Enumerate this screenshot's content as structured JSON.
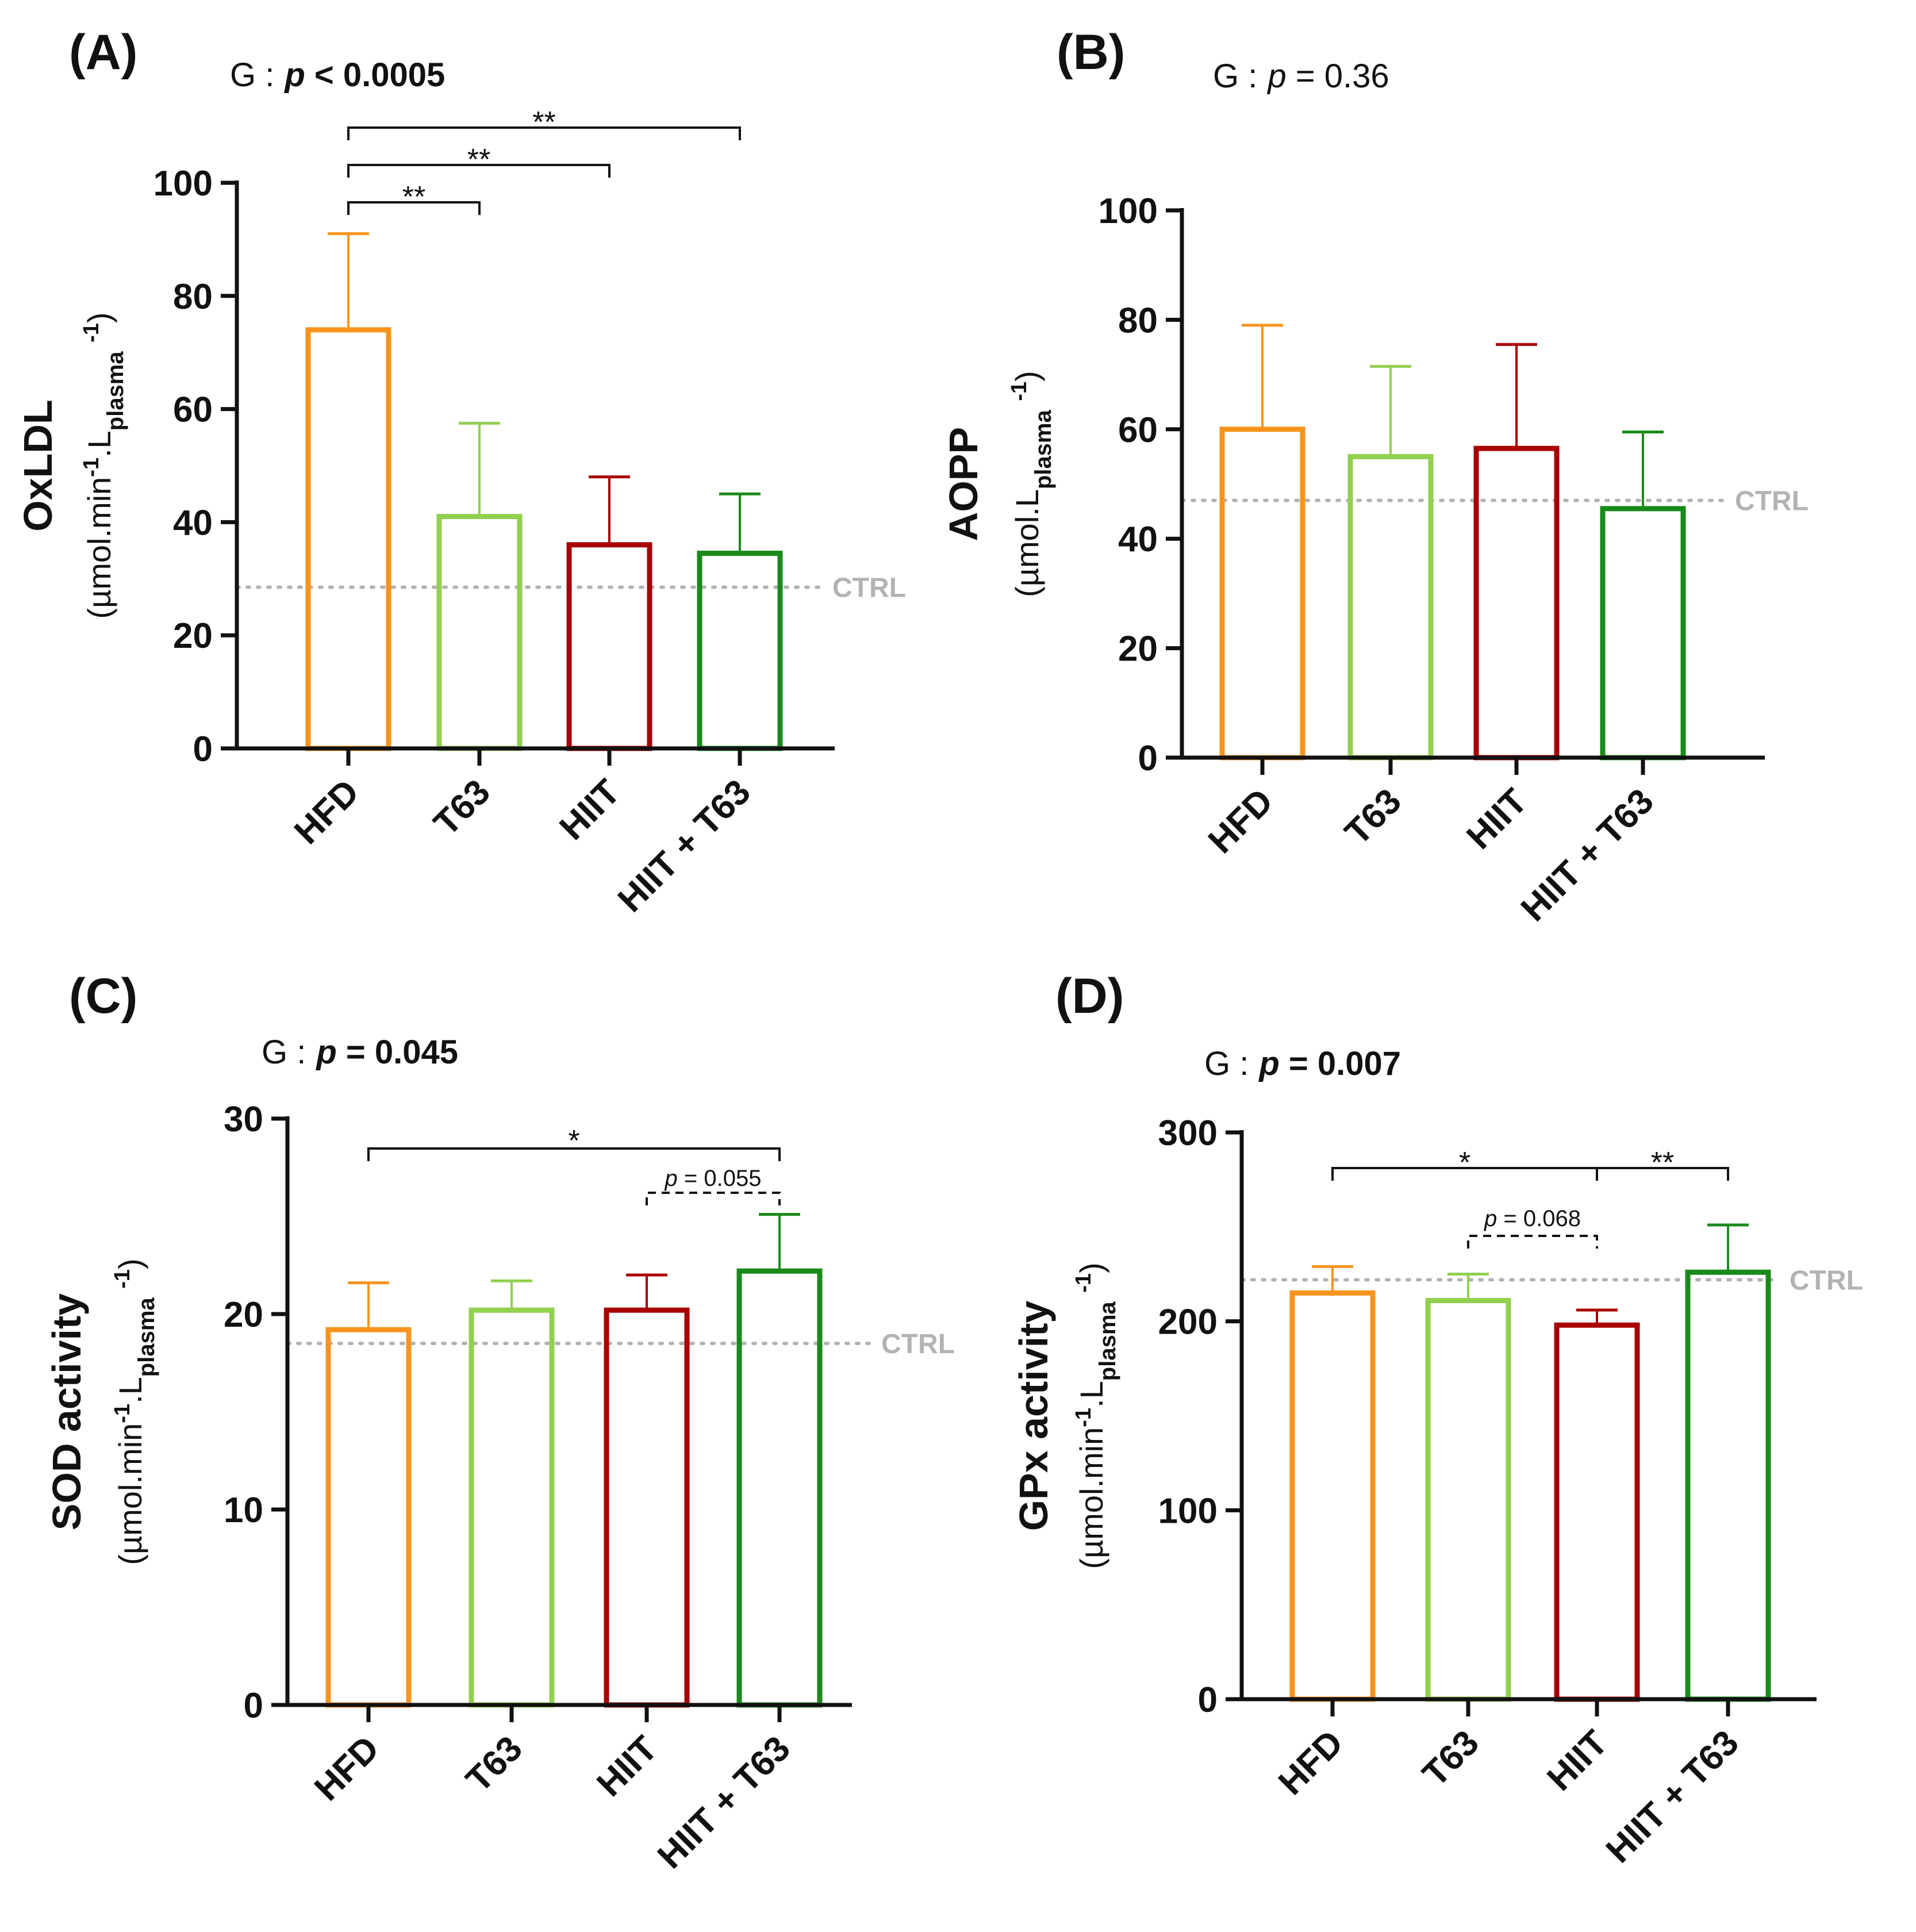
{
  "chart_data": [
    {
      "panel": "(A)",
      "type": "bar",
      "group_label": "G :",
      "group_stat": "p < 0.0005",
      "group_stat_bold": true,
      "ylabel": "OxLDL",
      "ylabel_unit": [
        "(µmol.min",
        "-1",
        ".L",
        "plasma",
        " ",
        "-1",
        ")"
      ],
      "ylim": [
        0,
        100
      ],
      "yticks": [
        0,
        20,
        40,
        60,
        80,
        100
      ],
      "categories": [
        "HFD",
        "T63",
        "HIIT",
        "HIIT + T63"
      ],
      "values": [
        74,
        41,
        36,
        34.5
      ],
      "errors_upper": [
        91,
        57.5,
        48,
        45
      ],
      "colors": [
        "#F7941D",
        "#92D050",
        "#A80000",
        "#1A8A1A"
      ],
      "control": {
        "label": "CTRL",
        "value": 28.5
      },
      "significance": [
        {
          "from": 0,
          "to": 1,
          "label": "**",
          "dashed": false
        },
        {
          "from": 0,
          "to": 2,
          "label": "**",
          "dashed": false
        },
        {
          "from": 0,
          "to": 3,
          "label": "**",
          "dashed": false
        }
      ]
    },
    {
      "panel": "(B)",
      "type": "bar",
      "group_label": "G :",
      "group_stat": "p = 0.36",
      "group_stat_bold": false,
      "ylabel": "AOPP",
      "ylabel_unit": [
        "(µmol.L",
        "plasma",
        " ",
        "-1",
        ")"
      ],
      "ylim": [
        0,
        100
      ],
      "yticks": [
        0,
        20,
        40,
        60,
        80,
        100
      ],
      "categories": [
        "HFD",
        "T63",
        "HIIT",
        "HIIT + T63"
      ],
      "values": [
        60,
        55,
        56.5,
        45.5
      ],
      "errors_upper": [
        79,
        71.5,
        75.5,
        59.5
      ],
      "colors": [
        "#F7941D",
        "#92D050",
        "#A80000",
        "#1A8A1A"
      ],
      "control": {
        "label": "CTRL",
        "value": 47
      },
      "significance": []
    },
    {
      "panel": "(C)",
      "type": "bar",
      "group_label": "G :",
      "group_stat": "p = 0.045",
      "group_stat_bold": true,
      "ylabel": "SOD activity",
      "ylabel_unit": [
        "(µmol.min",
        "-1",
        ".L",
        "plasma",
        " ",
        "-1",
        ")"
      ],
      "ylim": [
        0,
        30
      ],
      "yticks": [
        0,
        10,
        20,
        30
      ],
      "categories": [
        "HFD",
        "T63",
        "HIIT",
        "HIIT + T63"
      ],
      "values": [
        19.2,
        20.2,
        20.2,
        22.2
      ],
      "errors_upper": [
        21.6,
        21.7,
        22,
        25.1
      ],
      "colors": [
        "#F7941D",
        "#92D050",
        "#A80000",
        "#1A8A1A"
      ],
      "control": {
        "label": "CTRL",
        "value": 18.5
      },
      "significance": [
        {
          "from": 0,
          "to": 3,
          "label": "*",
          "dashed": false
        },
        {
          "from": 2,
          "to": 3,
          "label": "p = 0.055",
          "dashed": true
        }
      ]
    },
    {
      "panel": "(D)",
      "type": "bar",
      "group_label": "G :",
      "group_stat": "p = 0.007",
      "group_stat_bold": true,
      "ylabel": "GPx activity",
      "ylabel_unit": [
        "(µmol.min",
        "-1",
        ".L",
        "plasma",
        " ",
        "-1",
        ")"
      ],
      "ylim": [
        0,
        300
      ],
      "yticks": [
        0,
        100,
        200,
        300
      ],
      "categories": [
        "HFD",
        "T63",
        "HIIT",
        "HIIT + T63"
      ],
      "values": [
        215,
        211,
        198,
        226
      ],
      "errors_upper": [
        229,
        225,
        206,
        251
      ],
      "colors": [
        "#F7941D",
        "#92D050",
        "#A80000",
        "#1A8A1A"
      ],
      "control": {
        "label": "CTRL",
        "value": 222
      },
      "significance": [
        {
          "from": 0,
          "to": 2,
          "label": "*",
          "dashed": false
        },
        {
          "from": 2,
          "to": 3,
          "label": "**",
          "dashed": false
        },
        {
          "from": 1,
          "to": 2,
          "label": "p = 0.068",
          "dashed": true
        }
      ]
    }
  ]
}
